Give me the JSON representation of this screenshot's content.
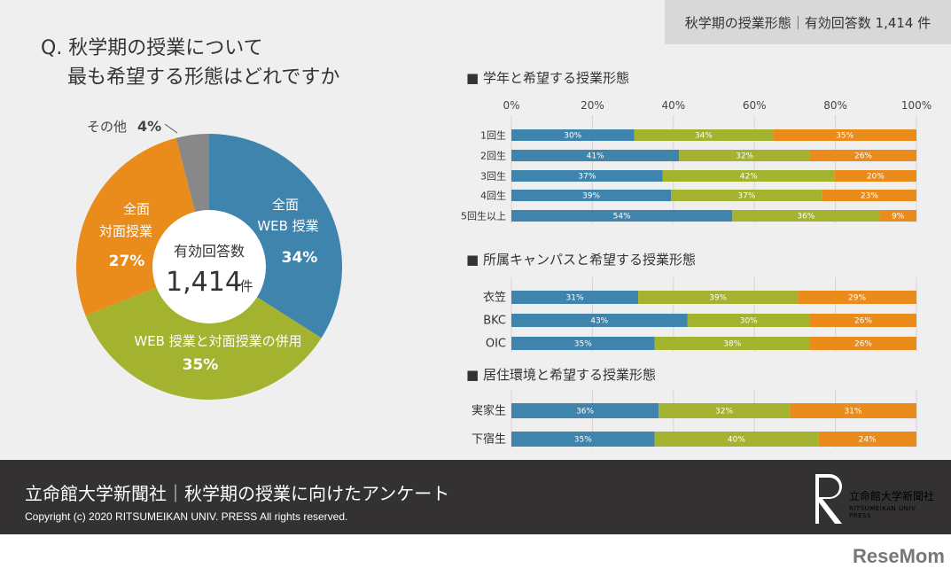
{
  "header_badge": "秋学期の授業形態｜有効回答数 1,414 件",
  "question": {
    "line1": "Q. 秋学期の授業について",
    "line2": "最も希望する形態はどれですか"
  },
  "colors": {
    "web": "#3f84ad",
    "both": "#a3b22f",
    "face": "#ea8c1c",
    "other": "#888888"
  },
  "pie": {
    "center_label": "有効回答数",
    "center_value": "1,414",
    "center_unit": "件",
    "slices": [
      {
        "label1": "全面",
        "label2": "WEB 授業",
        "pct_label": "34%",
        "value": 34,
        "color": "#3f84ad"
      },
      {
        "label1": "WEB 授業と対面授業の併用",
        "label2": "",
        "pct_label": "35%",
        "value": 35,
        "color": "#a3b22f"
      },
      {
        "label1": "全面",
        "label2": "対面授業",
        "pct_label": "27%",
        "value": 27,
        "color": "#ea8c1c"
      },
      {
        "label1": "その他",
        "label2": "",
        "pct_label": "4%",
        "value": 4,
        "color": "#888888"
      }
    ]
  },
  "chart_data": {
    "type": "bar",
    "orientation": "horizontal-stacked-100",
    "ticks": [
      "0%",
      "20%",
      "40%",
      "60%",
      "80%",
      "100%"
    ],
    "xlim": [
      0,
      100
    ],
    "grid": true,
    "groups": [
      {
        "title": "■ 学年と希望する授業形態",
        "categories": [
          "1回生",
          "2回生",
          "3回生",
          "4回生",
          "5回生以上"
        ],
        "values": [
          [
            30,
            34,
            35
          ],
          [
            41,
            32,
            26
          ],
          [
            37,
            42,
            20
          ],
          [
            39,
            37,
            23
          ],
          [
            54,
            36,
            9
          ]
        ]
      },
      {
        "title": "■ 所属キャンパスと希望する授業形態",
        "categories": [
          "衣笠",
          "BKC",
          "OIC"
        ],
        "values": [
          [
            31,
            39,
            29
          ],
          [
            43,
            30,
            26
          ],
          [
            35,
            38,
            26
          ]
        ]
      },
      {
        "title": "■ 居住環境と希望する授業形態",
        "categories": [
          "実家生",
          "下宿生"
        ],
        "values": [
          [
            36,
            32,
            31
          ],
          [
            35,
            40,
            24
          ]
        ]
      }
    ]
  },
  "footer": {
    "title": "立命館大学新聞社｜秋学期の授業に向けたアンケート",
    "copyright": "Copyright (c) 2020  RITSUMEIKAN UNIV. PRESS  All rights reserved.",
    "logo_jp": "立命館大学新聞社",
    "logo_en": "RITSUMEIKAN UNIV PRESS"
  },
  "watermark": "ReseMom"
}
